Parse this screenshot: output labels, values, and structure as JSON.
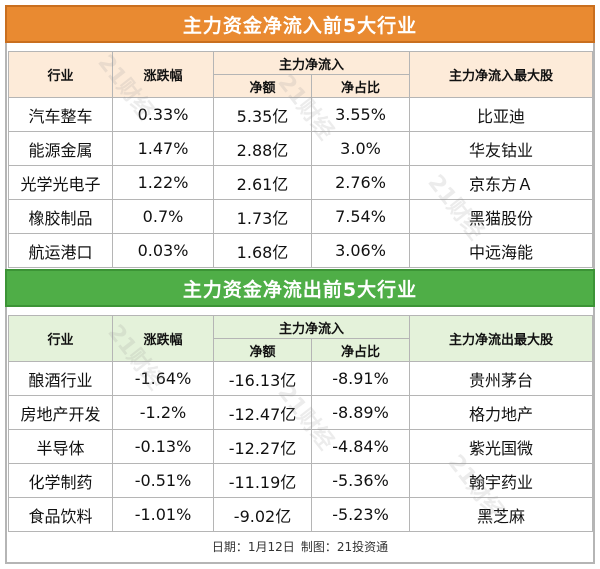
{
  "inflow": {
    "title": "主力资金净流入前5大行业",
    "headers": {
      "industry": "行业",
      "change": "涨跌幅",
      "group": "主力净流入",
      "amount": "净额",
      "ratio": "净占比",
      "top_stock": "主力净流入最大股"
    },
    "rows": [
      {
        "industry": "汽车整车",
        "change": "0.33%",
        "amount": "5.35亿",
        "ratio": "3.55%",
        "stock": "比亚迪"
      },
      {
        "industry": "能源金属",
        "change": "1.47%",
        "amount": "2.88亿",
        "ratio": "3.0%",
        "stock": "华友钴业"
      },
      {
        "industry": "光学光电子",
        "change": "1.22%",
        "amount": "2.61亿",
        "ratio": "2.76%",
        "stock": "京东方Ａ"
      },
      {
        "industry": "橡胶制品",
        "change": "0.7%",
        "amount": "1.73亿",
        "ratio": "7.54%",
        "stock": "黑猫股份"
      },
      {
        "industry": "航运港口",
        "change": "0.03%",
        "amount": "1.68亿",
        "ratio": "3.06%",
        "stock": "中远海能"
      }
    ]
  },
  "outflow": {
    "title": "主力资金净流出前5大行业",
    "headers": {
      "industry": "行业",
      "change": "涨跌幅",
      "group": "主力净流入",
      "amount": "净额",
      "ratio": "净占比",
      "top_stock": "主力净流出最大股"
    },
    "rows": [
      {
        "industry": "酿酒行业",
        "change": "-1.64%",
        "amount": "-16.13亿",
        "ratio": "-8.91%",
        "stock": "贵州茅台"
      },
      {
        "industry": "房地产开发",
        "change": "-1.2%",
        "amount": "-12.47亿",
        "ratio": "-8.89%",
        "stock": "格力地产"
      },
      {
        "industry": "半导体",
        "change": "-0.13%",
        "amount": "-12.27亿",
        "ratio": "-4.84%",
        "stock": "紫光国微"
      },
      {
        "industry": "化学制药",
        "change": "-0.51%",
        "amount": "-11.19亿",
        "ratio": "-5.36%",
        "stock": "翰宇药业"
      },
      {
        "industry": "食品饮料",
        "change": "-1.01%",
        "amount": "-9.02亿",
        "ratio": "-5.23%",
        "stock": "黑芝麻"
      }
    ]
  },
  "footer": {
    "date": "日期：1月12日",
    "credit": "制图：21投资通"
  },
  "watermark": "21财经",
  "colors": {
    "inflow_banner": "#e98a31",
    "inflow_header": "#fdebd9",
    "outflow_banner": "#4fae47",
    "outflow_header": "#e4f2da"
  }
}
